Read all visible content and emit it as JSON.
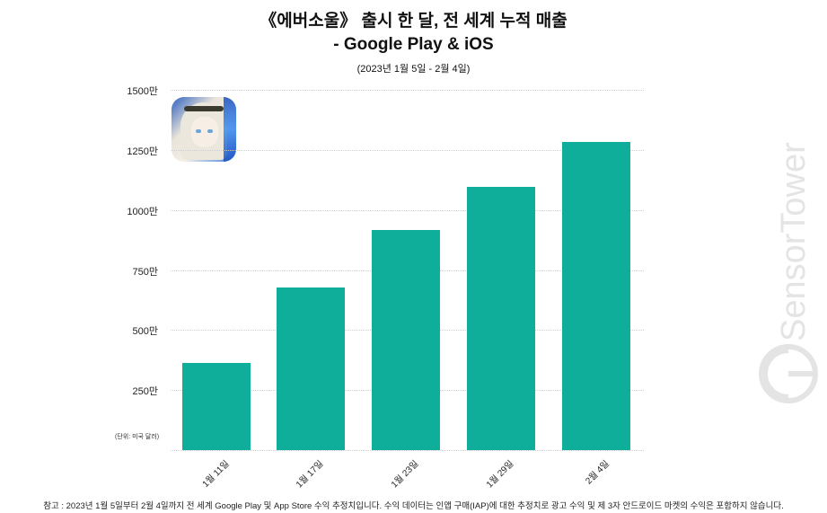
{
  "title": {
    "line1": "《에버소울》 출시 한 달, 전 세계 누적 매출",
    "line2": "- Google Play & iOS",
    "subtitle": "(2023년 1월 5일 - 2월 4일)"
  },
  "unit_label": "(단위: 미국 달러)",
  "footer": "참고 : 2023년 1월 5일부터 2월 4일까지 전 세계 Google Play 및 App Store 수익 추정치입니다. 수익 데이터는 인앱 구매(IAP)에 대한 추정치로 광고 수익 및 제 3자 안드로이드 마켓의 수익은 포함하지 않습니다.",
  "watermark": "SensorTower",
  "app_icon": "eversoul-app-icon",
  "colors": {
    "bar": "#0eae9b",
    "grid": "#cfcfcf",
    "watermark": "#e6e6e6"
  },
  "y_ticks": [
    "1500만",
    "1250만",
    "1000만",
    "750만",
    "500만",
    "250만"
  ],
  "chart_data": {
    "type": "bar",
    "title": "《에버소울》 출시 한 달, 전 세계 누적 매출 - Google Play & iOS",
    "subtitle": "(2023년 1월 5일 - 2월 4일)",
    "categories": [
      "1월 11일",
      "1월 17일",
      "1월 23일",
      "1월 29일",
      "2월 4일"
    ],
    "values": [
      3630000,
      6770000,
      9170000,
      10970000,
      12840000
    ],
    "xlabel": "",
    "ylabel": "(단위: 미국 달러)",
    "ylim": [
      0,
      15000000
    ],
    "yticks": [
      2500000,
      5000000,
      7500000,
      10000000,
      12500000,
      15000000
    ],
    "ytick_labels": [
      "250만",
      "500만",
      "750만",
      "1000만",
      "1250만",
      "1500만"
    ],
    "grid": true,
    "legend": null,
    "bar_color": "#0eae9b"
  }
}
